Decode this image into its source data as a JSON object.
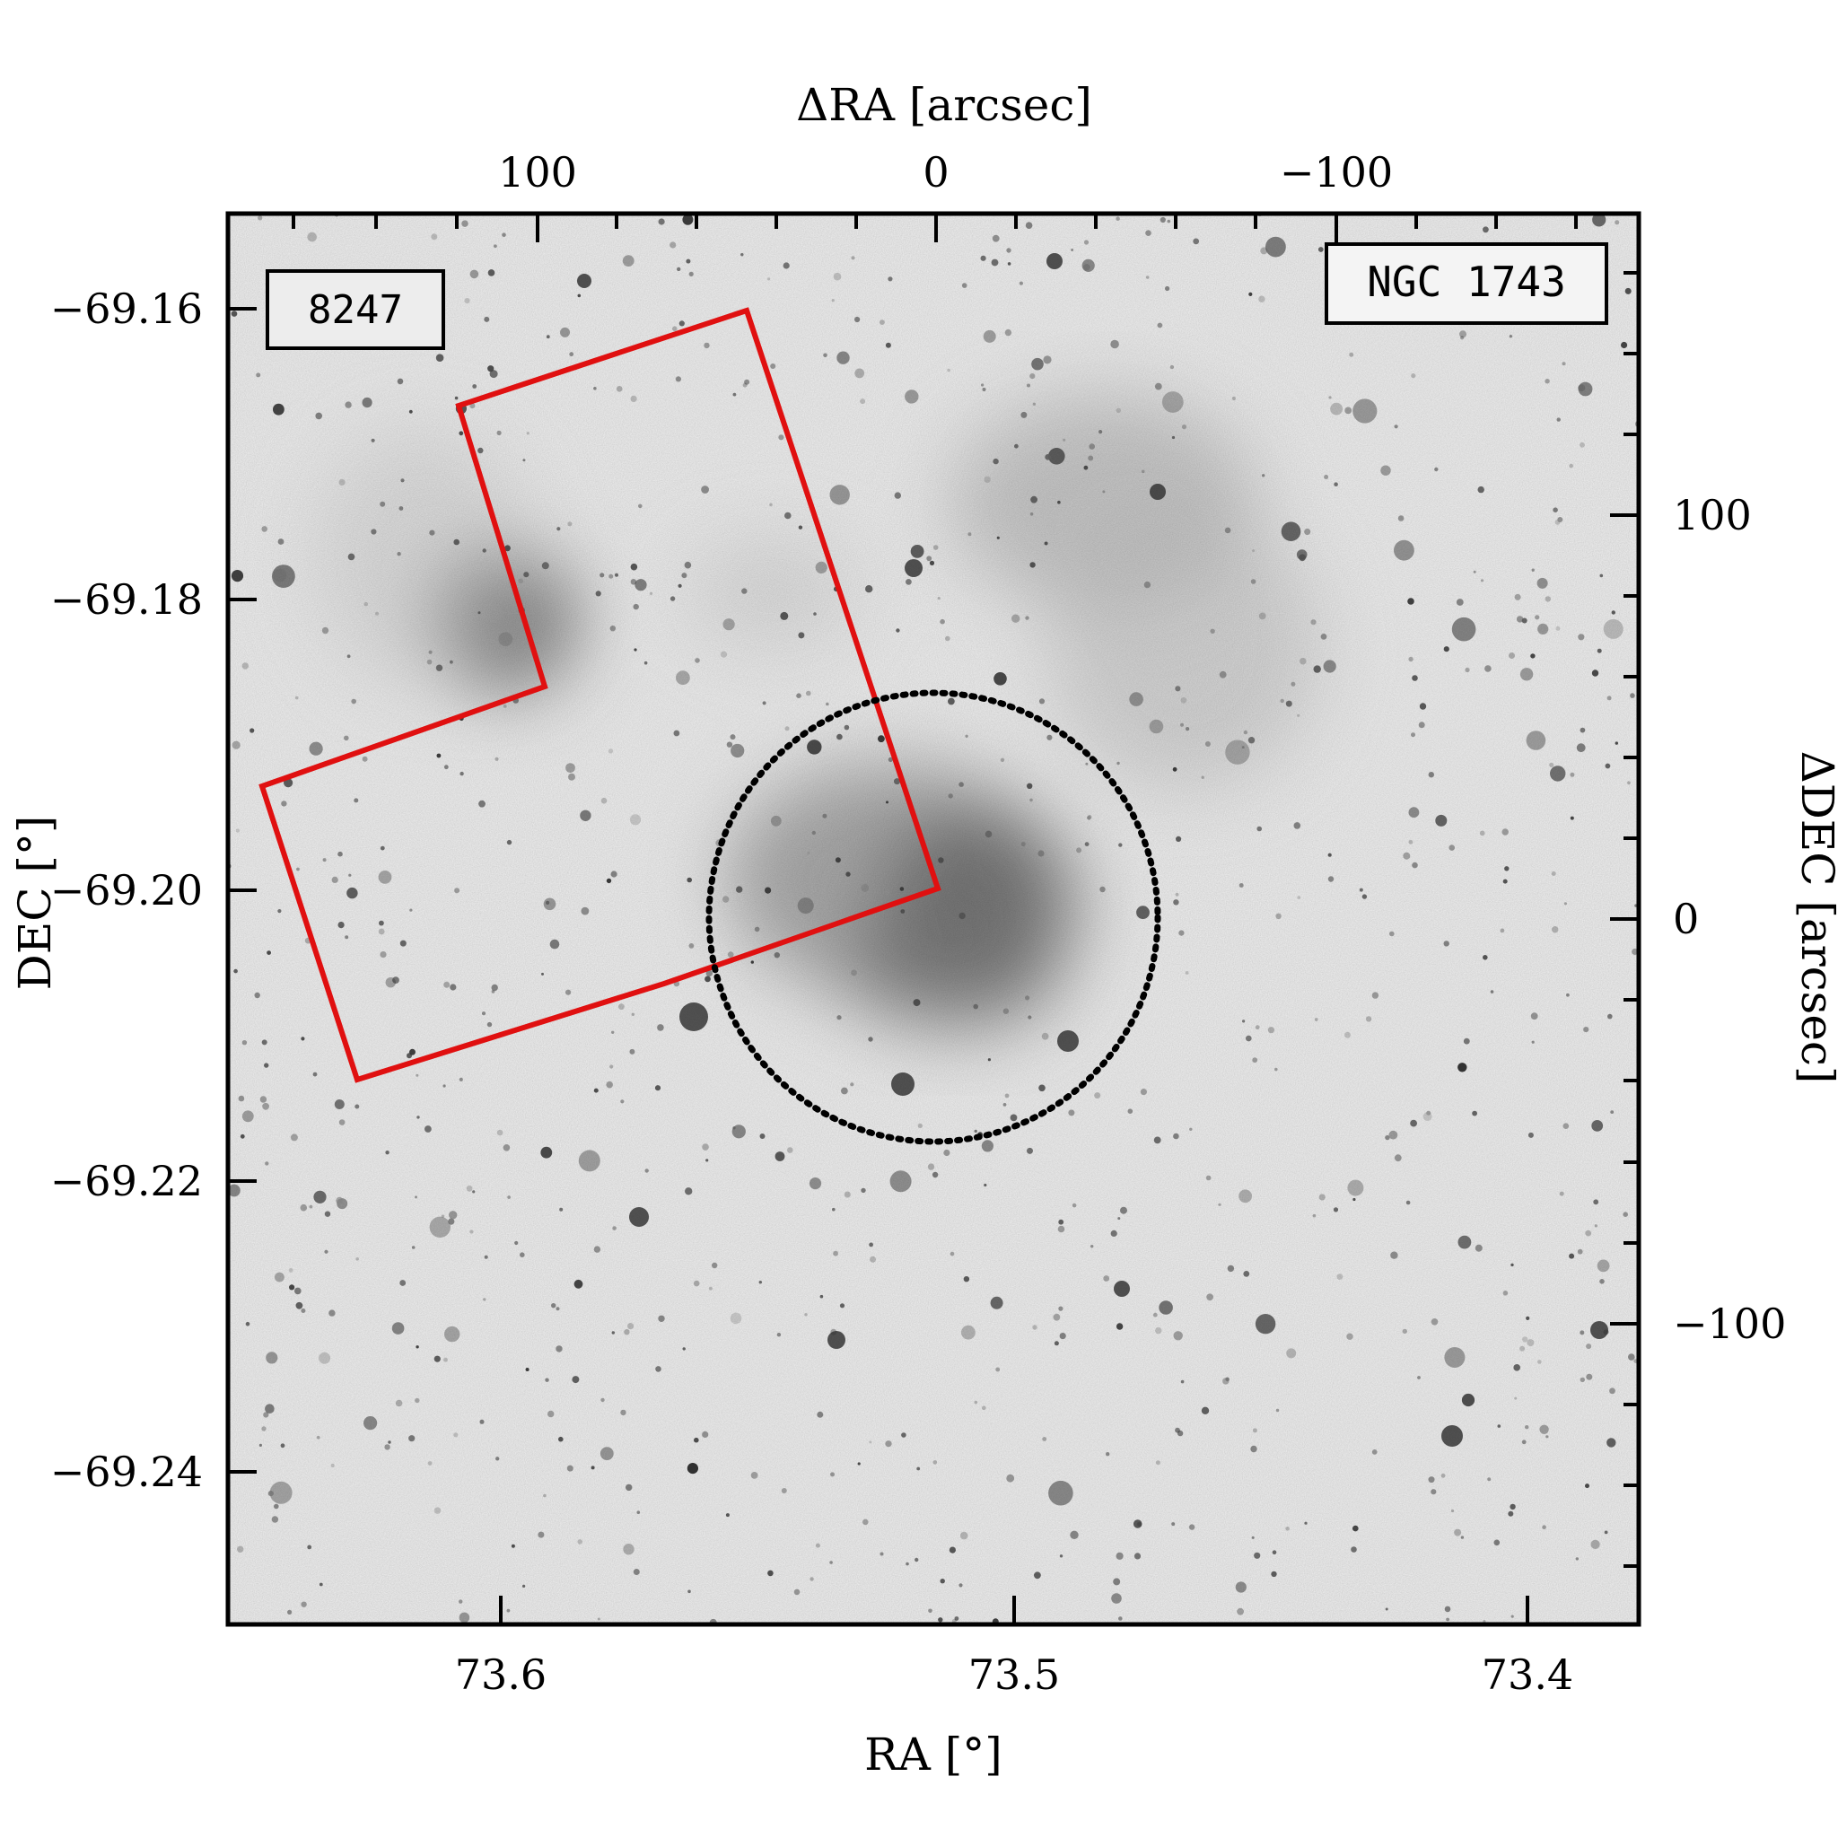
{
  "image": {
    "object_label": "NGC 1743",
    "footprint_label": "8247",
    "footprint_color": "#e01010",
    "circle_color": "#000000",
    "background": "grayscale sky survey image, inverted (stars dark on white)"
  },
  "axes": {
    "bottom": {
      "label": "RA [°]",
      "ticks": [
        "73.6",
        "73.5",
        "73.4"
      ]
    },
    "left": {
      "label": "DEC [°]",
      "ticks": [
        "−69.16",
        "−69.18",
        "−69.20",
        "−69.22",
        "−69.24"
      ]
    },
    "top": {
      "label": "ΔRA [arcsec]",
      "ticks": [
        "100",
        "0",
        "−100"
      ]
    },
    "right": {
      "label": "ΔDEC [arcsec]",
      "ticks": [
        "100",
        "0",
        "−100"
      ]
    }
  }
}
